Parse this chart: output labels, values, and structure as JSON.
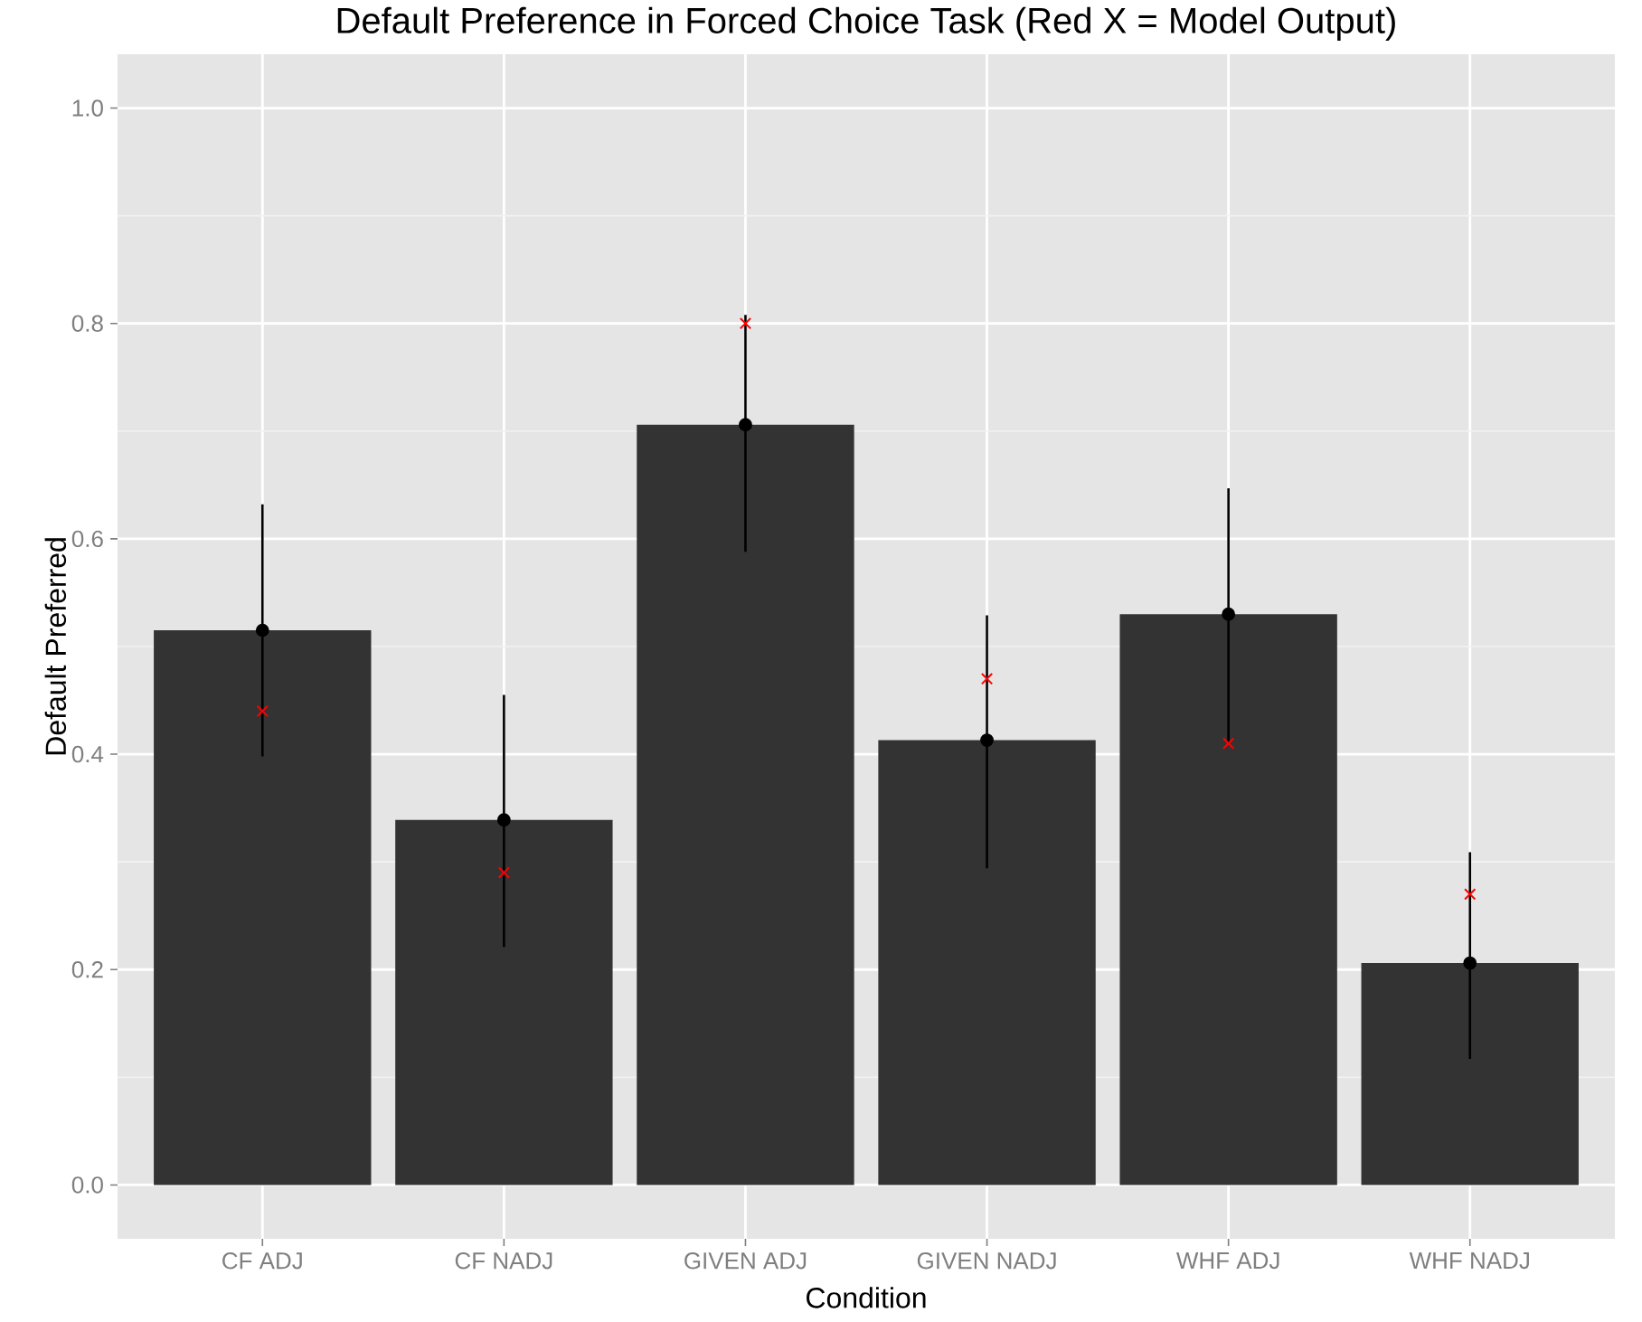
{
  "chart_data": {
    "type": "bar",
    "title": "Default Preference in Forced Choice Task (Red X = Model Output)",
    "xlabel": "Condition",
    "ylabel": "Default Preferred",
    "categories": [
      "CF ADJ",
      "CF NADJ",
      "GIVEN ADJ",
      "GIVEN NADJ",
      "WHF ADJ",
      "WHF NADJ"
    ],
    "ylim": [
      -0.05,
      1.05
    ],
    "yticks": [
      {
        "value": 0,
        "label": "0.0"
      },
      0.2,
      0.4,
      0.6,
      0.8,
      {
        "value": 1,
        "label": "1.0"
      }
    ],
    "grid": true,
    "series": [
      {
        "color": "#333333",
        "values": [
          0.515,
          0.339,
          0.706,
          0.413,
          0.53,
          0.206
        ],
        "errors": [
          [
            0.398,
            0.632
          ],
          [
            0.221,
            0.455
          ],
          [
            0.588,
            0.808
          ],
          [
            0.294,
            0.529
          ],
          [
            0.41,
            0.647
          ],
          [
            0.117,
            0.309
          ]
        ]
      },
      {
        "type": "scatter",
        "color": "#000000",
        "marker": "circle",
        "x": [
          "CF ADJ",
          "CF NADJ",
          "GIVEN ADJ",
          "GIVEN NADJ",
          "WHF ADJ",
          "WHF NADJ"
        ],
        "values": [
          0.515,
          0.339,
          0.706,
          0.413,
          0.53,
          0.206
        ]
      },
      {
        "type": "scatter",
        "color": "#ff0000",
        "marker": "cross",
        "x": [
          "CF ADJ",
          "CF NADJ",
          "GIVEN ADJ",
          "GIVEN NADJ",
          "WHF ADJ",
          "WHF NADJ"
        ],
        "values": [
          0.44,
          0.29,
          0.8,
          0.47,
          0.41,
          0.27
        ]
      }
    ]
  }
}
